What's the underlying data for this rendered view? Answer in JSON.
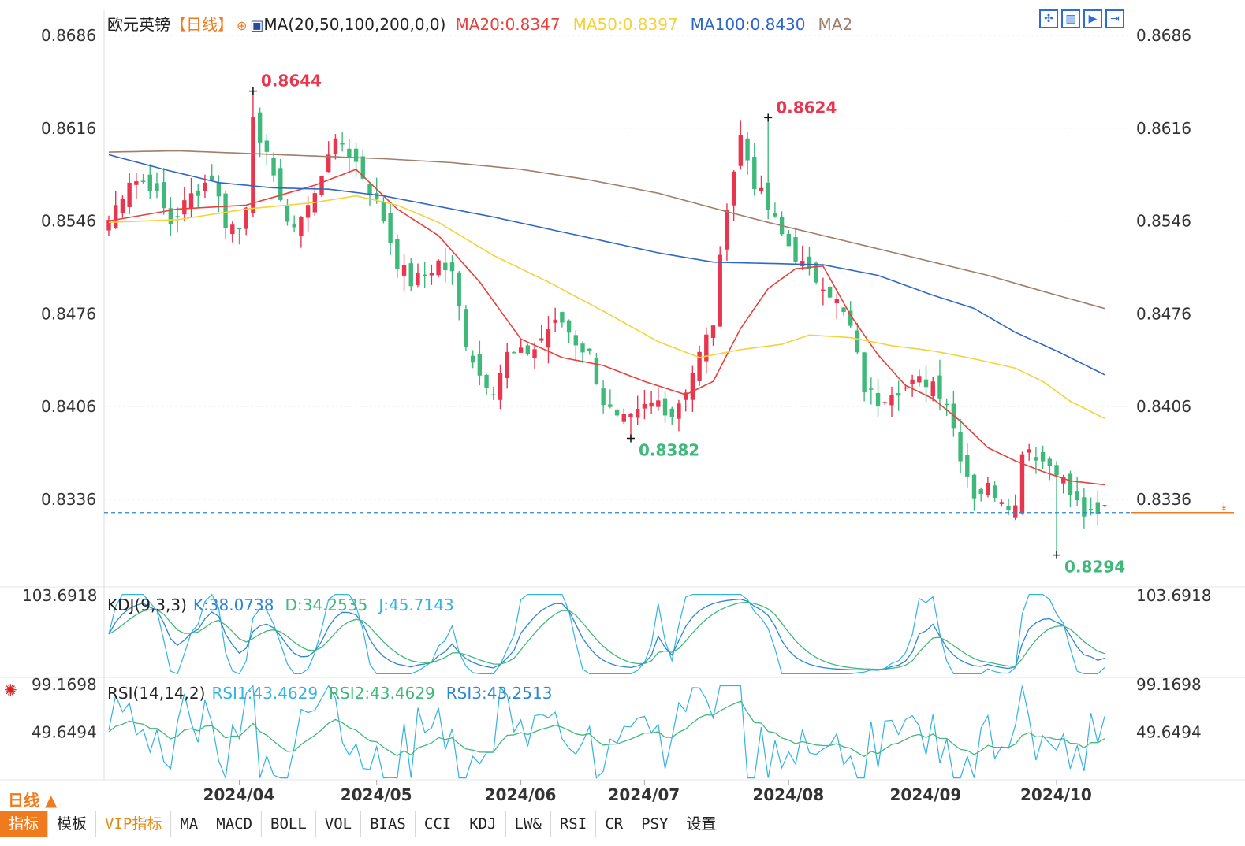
{
  "header": {
    "pair": "欧元英镑",
    "period_tag": "【日线】",
    "ma_label": "MA(20,50,100,200,0,0)",
    "ma20": "MA20:0.8347",
    "ma50": "MA50:0.8397",
    "ma100": "MA100:0.8430",
    "ma2": "MA2"
  },
  "kdj": {
    "label": "KDJ(9,3,3)",
    "k": "K:38.0738",
    "d": "D:34.2535",
    "j": "J:45.7143"
  },
  "rsi": {
    "label": "RSI(14,14,2)",
    "rsi1": "RSI1:43.4629",
    "rsi2": "RSI2:43.4629",
    "rsi3": "RSI3:43.2513"
  },
  "period_label": "日线",
  "tabs": [
    "指标",
    "模板",
    "VIP指标",
    "MA",
    "MACD",
    "BOLL",
    "VOL",
    "BIAS",
    "CCI",
    "KDJ",
    "LW&",
    "RSI",
    "CR",
    "PSY",
    "设置"
  ],
  "colors": {
    "up": "#e8364e",
    "down": "#3fb97a",
    "ma20": "#e8403a",
    "ma50": "#f4d23a",
    "ma100": "#2f67c7",
    "ma200": "#a07e6a",
    "current": "#2c86d4",
    "grid": "#dddddd"
  },
  "chart_data": [
    {
      "type": "candlestick",
      "title": "欧元英镑",
      "y_ticks": [
        "0.8686",
        "0.8616",
        "0.8546",
        "0.8476",
        "0.8406",
        "0.8336"
      ],
      "ylim": [
        0.827,
        0.8686
      ],
      "x_ticks": [
        "2024/04",
        "2024/05",
        "2024/06",
        "2024/07",
        "2024/08",
        "2024/09",
        "2024/10"
      ],
      "x_tick_index": [
        19,
        39,
        60,
        78,
        99,
        119,
        138
      ],
      "annotations": [
        {
          "text": "0.8644",
          "index": 21,
          "value": 0.8644,
          "kind": "high"
        },
        {
          "text": "0.8624",
          "index": 96,
          "value": 0.8624,
          "kind": "high"
        },
        {
          "text": "0.8382",
          "index": 76,
          "value": 0.8382,
          "kind": "low"
        },
        {
          "text": "0.8294",
          "index": 138,
          "value": 0.8294,
          "kind": "low"
        }
      ],
      "current_price": 0.8326,
      "ohlc_anchors": [
        [
          0,
          0.8547
        ],
        [
          3,
          0.8578
        ],
        [
          6,
          0.8574
        ],
        [
          9,
          0.8545
        ],
        [
          12,
          0.8565
        ],
        [
          15,
          0.858
        ],
        [
          17,
          0.8545
        ],
        [
          19,
          0.854
        ],
        [
          20,
          0.856
        ],
        [
          21,
          0.863
        ],
        [
          22,
          0.86
        ],
        [
          24,
          0.8585
        ],
        [
          26,
          0.854
        ],
        [
          28,
          0.855
        ],
        [
          30,
          0.8565
        ],
        [
          32,
          0.86
        ],
        [
          34,
          0.8605
        ],
        [
          36,
          0.859
        ],
        [
          38,
          0.857
        ],
        [
          40,
          0.8548
        ],
        [
          42,
          0.8515
        ],
        [
          44,
          0.85
        ],
        [
          46,
          0.8505
        ],
        [
          48,
          0.8515
        ],
        [
          50,
          0.8505
        ],
        [
          52,
          0.8455
        ],
        [
          54,
          0.843
        ],
        [
          56,
          0.842
        ],
        [
          58,
          0.8445
        ],
        [
          60,
          0.8445
        ],
        [
          62,
          0.845
        ],
        [
          64,
          0.8465
        ],
        [
          66,
          0.847
        ],
        [
          68,
          0.8455
        ],
        [
          70,
          0.8445
        ],
        [
          72,
          0.841
        ],
        [
          74,
          0.8395
        ],
        [
          76,
          0.8395
        ],
        [
          78,
          0.8405
        ],
        [
          80,
          0.841
        ],
        [
          82,
          0.84
        ],
        [
          84,
          0.842
        ],
        [
          86,
          0.8445
        ],
        [
          88,
          0.847
        ],
        [
          90,
          0.856
        ],
        [
          92,
          0.861
        ],
        [
          94,
          0.8575
        ],
        [
          96,
          0.8555
        ],
        [
          98,
          0.8535
        ],
        [
          100,
          0.852
        ],
        [
          102,
          0.8505
        ],
        [
          104,
          0.85
        ],
        [
          106,
          0.8485
        ],
        [
          108,
          0.8465
        ],
        [
          110,
          0.842
        ],
        [
          112,
          0.841
        ],
        [
          114,
          0.842
        ],
        [
          116,
          0.842
        ],
        [
          118,
          0.8425
        ],
        [
          120,
          0.8425
        ],
        [
          122,
          0.841
        ],
        [
          124,
          0.837
        ],
        [
          126,
          0.834
        ],
        [
          128,
          0.8345
        ],
        [
          130,
          0.8338
        ],
        [
          132,
          0.833
        ],
        [
          133,
          0.8375
        ],
        [
          134,
          0.8375
        ],
        [
          136,
          0.8365
        ],
        [
          138,
          0.836
        ],
        [
          140,
          0.834
        ],
        [
          142,
          0.8325
        ],
        [
          144,
          0.8322
        ],
        [
          145,
          0.833
        ]
      ],
      "series": [
        {
          "name": "MA20",
          "value_last": 0.8347,
          "points": [
            [
              0,
              0.8546
            ],
            [
              10,
              0.8555
            ],
            [
              20,
              0.8558
            ],
            [
              30,
              0.8573
            ],
            [
              36,
              0.8585
            ],
            [
              42,
              0.8555
            ],
            [
              48,
              0.8535
            ],
            [
              54,
              0.85
            ],
            [
              60,
              0.8457
            ],
            [
              66,
              0.8443
            ],
            [
              72,
              0.8437
            ],
            [
              78,
              0.8425
            ],
            [
              84,
              0.8415
            ],
            [
              88,
              0.8425
            ],
            [
              92,
              0.8465
            ],
            [
              96,
              0.8495
            ],
            [
              100,
              0.851
            ],
            [
              104,
              0.8512
            ],
            [
              108,
              0.8475
            ],
            [
              112,
              0.8445
            ],
            [
              116,
              0.8422
            ],
            [
              120,
              0.8412
            ],
            [
              124,
              0.8395
            ],
            [
              128,
              0.8375
            ],
            [
              132,
              0.8365
            ],
            [
              136,
              0.8357
            ],
            [
              140,
              0.835
            ],
            [
              145,
              0.8347
            ]
          ]
        },
        {
          "name": "MA50",
          "value_last": 0.8397,
          "points": [
            [
              0,
              0.8545
            ],
            [
              10,
              0.8547
            ],
            [
              20,
              0.8555
            ],
            [
              30,
              0.856
            ],
            [
              36,
              0.8565
            ],
            [
              42,
              0.8558
            ],
            [
              48,
              0.8545
            ],
            [
              56,
              0.852
            ],
            [
              64,
              0.85
            ],
            [
              72,
              0.8478
            ],
            [
              80,
              0.8455
            ],
            [
              86,
              0.8443
            ],
            [
              92,
              0.8449
            ],
            [
              98,
              0.8453
            ],
            [
              102,
              0.846
            ],
            [
              108,
              0.8458
            ],
            [
              114,
              0.8452
            ],
            [
              120,
              0.8448
            ],
            [
              126,
              0.8442
            ],
            [
              132,
              0.8435
            ],
            [
              136,
              0.8425
            ],
            [
              140,
              0.841
            ],
            [
              145,
              0.8397
            ]
          ]
        },
        {
          "name": "MA100",
          "value_last": 0.843,
          "points": [
            [
              0,
              0.8596
            ],
            [
              8,
              0.8585
            ],
            [
              16,
              0.8575
            ],
            [
              24,
              0.8571
            ],
            [
              32,
              0.857
            ],
            [
              40,
              0.8565
            ],
            [
              48,
              0.8557
            ],
            [
              56,
              0.8549
            ],
            [
              64,
              0.854
            ],
            [
              72,
              0.8531
            ],
            [
              80,
              0.8522
            ],
            [
              88,
              0.8515
            ],
            [
              96,
              0.8514
            ],
            [
              104,
              0.8513
            ],
            [
              112,
              0.8505
            ],
            [
              120,
              0.849
            ],
            [
              126,
              0.848
            ],
            [
              132,
              0.8462
            ],
            [
              138,
              0.8448
            ],
            [
              145,
              0.843
            ]
          ]
        },
        {
          "name": "MA200",
          "points": [
            [
              0,
              0.8598
            ],
            [
              10,
              0.8599
            ],
            [
              20,
              0.8597
            ],
            [
              30,
              0.8595
            ],
            [
              40,
              0.8593
            ],
            [
              50,
              0.859
            ],
            [
              60,
              0.8585
            ],
            [
              70,
              0.8577
            ],
            [
              80,
              0.8567
            ],
            [
              90,
              0.8553
            ],
            [
              96,
              0.8545
            ],
            [
              104,
              0.8535
            ],
            [
              112,
              0.8525
            ],
            [
              120,
              0.8515
            ],
            [
              128,
              0.8505
            ],
            [
              136,
              0.8493
            ],
            [
              145,
              0.848
            ]
          ]
        }
      ]
    },
    {
      "type": "line",
      "title": "KDJ(9,3,3)",
      "y_ticks": [
        "103.6918"
      ],
      "ylim": [
        -10,
        110
      ],
      "series": [
        {
          "name": "K",
          "value_last": 38.0738
        },
        {
          "name": "D",
          "value_last": 34.2535
        },
        {
          "name": "J",
          "value_last": 45.7143
        }
      ]
    },
    {
      "type": "line",
      "title": "RSI(14,14,2)",
      "y_ticks": [
        "99.1698",
        "49.6494"
      ],
      "ylim": [
        0,
        105
      ],
      "series": [
        {
          "name": "RSI1",
          "value_last": 43.4629
        },
        {
          "name": "RSI2",
          "value_last": 43.4629
        },
        {
          "name": "RSI3",
          "value_last": 43.2513
        }
      ]
    }
  ]
}
